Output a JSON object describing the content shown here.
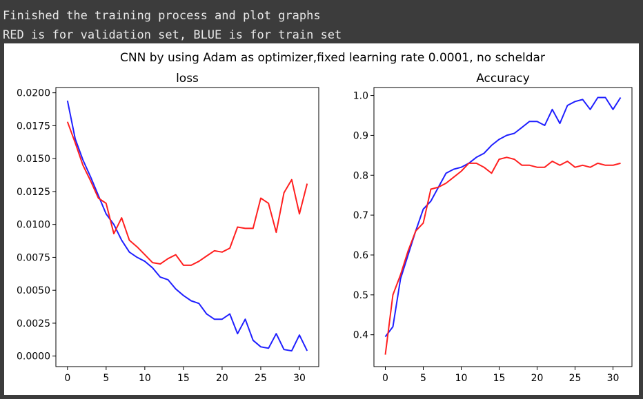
{
  "console": {
    "lines": [
      "Finished the training process and plot graphs",
      "RED is for validation set, BLUE is for train set"
    ]
  },
  "figure": {
    "suptitle": "CNN by using Adam as optimizer,fixed learning rate 0.0001, no scheldar"
  },
  "colors": {
    "train": "#1f1fff",
    "validation": "#ff1f1f"
  },
  "chart_data": [
    {
      "type": "line",
      "title": "loss",
      "xlabel": "",
      "ylabel": "",
      "xlim": [
        -1.5,
        32.5
      ],
      "ylim": [
        -0.0008,
        0.0204
      ],
      "xticks": [
        0,
        5,
        10,
        15,
        20,
        25,
        30
      ],
      "xtick_labels": [
        "0",
        "5",
        "10",
        "15",
        "20",
        "25",
        "30"
      ],
      "yticks": [
        0,
        0.0025,
        0.005,
        0.0075,
        0.01,
        0.0125,
        0.015,
        0.0175,
        0.02
      ],
      "ytick_labels": [
        "0.0000",
        "0.0025",
        "0.0050",
        "0.0075",
        "0.0100",
        "0.0125",
        "0.0150",
        "0.0175",
        "0.0200"
      ],
      "x": [
        0,
        1,
        2,
        3,
        4,
        5,
        6,
        7,
        8,
        9,
        10,
        11,
        12,
        13,
        14,
        15,
        16,
        17,
        18,
        19,
        20,
        21,
        22,
        23,
        24,
        25,
        26,
        27,
        28,
        29,
        30,
        31
      ],
      "series": [
        {
          "name": "train",
          "color": "#1f1fff",
          "values": [
            0.0194,
            0.0165,
            0.0149,
            0.0136,
            0.0122,
            0.0108,
            0.01,
            0.0088,
            0.0079,
            0.0075,
            0.0072,
            0.0067,
            0.006,
            0.0058,
            0.0051,
            0.0046,
            0.0042,
            0.004,
            0.0032,
            0.0028,
            0.0028,
            0.0032,
            0.0017,
            0.0028,
            0.0012,
            0.0007,
            0.0006,
            0.0017,
            0.0005,
            0.0004,
            0.0016,
            0.0004
          ]
        },
        {
          "name": "validation",
          "color": "#ff1f1f",
          "values": [
            0.0178,
            0.0162,
            0.0145,
            0.0133,
            0.012,
            0.0116,
            0.0093,
            0.0105,
            0.0088,
            0.0083,
            0.0077,
            0.0071,
            0.007,
            0.0074,
            0.0077,
            0.0069,
            0.0069,
            0.0072,
            0.0076,
            0.008,
            0.0079,
            0.0082,
            0.0098,
            0.0097,
            0.0097,
            0.012,
            0.0116,
            0.0094,
            0.0124,
            0.0134,
            0.0108,
            0.0131
          ]
        }
      ]
    },
    {
      "type": "line",
      "title": "Accuracy",
      "xlabel": "",
      "ylabel": "",
      "xlim": [
        -1.5,
        32.5
      ],
      "ylim": [
        0.32,
        1.02
      ],
      "xticks": [
        0,
        5,
        10,
        15,
        20,
        25,
        30
      ],
      "xtick_labels": [
        "0",
        "5",
        "10",
        "15",
        "20",
        "25",
        "30"
      ],
      "yticks": [
        0.4,
        0.5,
        0.6,
        0.7,
        0.8,
        0.9,
        1.0
      ],
      "ytick_labels": [
        "0.4",
        "0.5",
        "0.6",
        "0.7",
        "0.8",
        "0.9",
        "1.0"
      ],
      "x": [
        0,
        1,
        2,
        3,
        4,
        5,
        6,
        7,
        8,
        9,
        10,
        11,
        12,
        13,
        14,
        15,
        16,
        17,
        18,
        19,
        20,
        21,
        22,
        23,
        24,
        25,
        26,
        27,
        28,
        29,
        30,
        31
      ],
      "series": [
        {
          "name": "train",
          "color": "#1f1fff",
          "values": [
            0.395,
            0.42,
            0.54,
            0.6,
            0.66,
            0.715,
            0.735,
            0.77,
            0.805,
            0.815,
            0.82,
            0.83,
            0.845,
            0.855,
            0.875,
            0.89,
            0.9,
            0.905,
            0.92,
            0.935,
            0.935,
            0.925,
            0.965,
            0.93,
            0.975,
            0.985,
            0.99,
            0.965,
            0.995,
            0.995,
            0.965,
            0.995
          ]
        },
        {
          "name": "validation",
          "color": "#ff1f1f",
          "values": [
            0.35,
            0.5,
            0.55,
            0.61,
            0.66,
            0.68,
            0.765,
            0.77,
            0.78,
            0.795,
            0.81,
            0.83,
            0.83,
            0.82,
            0.805,
            0.84,
            0.845,
            0.84,
            0.825,
            0.825,
            0.82,
            0.82,
            0.835,
            0.825,
            0.835,
            0.82,
            0.825,
            0.82,
            0.83,
            0.825,
            0.825,
            0.83
          ]
        }
      ]
    }
  ]
}
